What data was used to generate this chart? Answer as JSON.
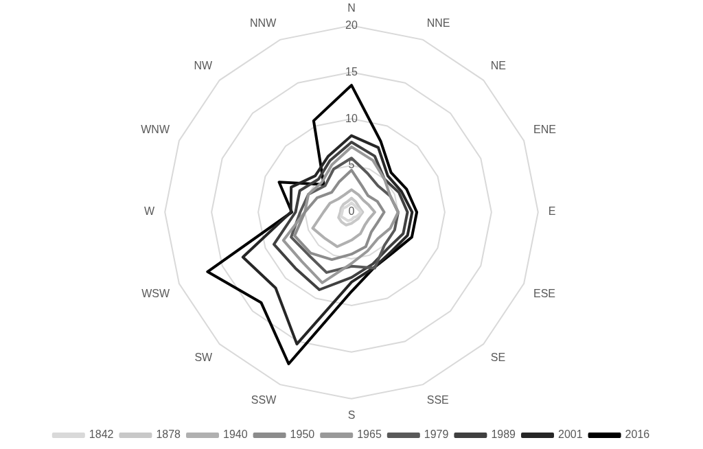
{
  "chart_data": {
    "type": "radar",
    "categories": [
      "N",
      "NNE",
      "NE",
      "ENE",
      "E",
      "ESE",
      "SE",
      "SSE",
      "S",
      "SSW",
      "SW",
      "WSW",
      "W",
      "WNW",
      "NW",
      "NNW"
    ],
    "ylim": [
      0,
      20
    ],
    "yticks": [
      0,
      5,
      10,
      15,
      20
    ],
    "grid": true,
    "legend": "bottom",
    "marker": "none",
    "series": [
      {
        "name": "1842",
        "color": "#d9d9d9",
        "values": [
          1,
          0.8,
          0.7,
          0.8,
          1,
          0.8,
          0.7,
          0.6,
          0.8,
          1,
          1,
          1.2,
          1,
          1,
          0.8,
          0.8
        ]
      },
      {
        "name": "1878",
        "color": "#c8c8c8",
        "values": [
          1.5,
          1.2,
          1,
          1,
          1.2,
          1,
          1,
          1,
          1.2,
          1.5,
          1.5,
          1.5,
          1.2,
          1.2,
          1.2,
          1.2
        ]
      },
      {
        "name": "1940",
        "color": "#b0b0b0",
        "values": [
          2.4,
          2,
          1.8,
          2,
          2.5,
          2,
          2,
          2.5,
          3,
          4,
          4,
          4.5,
          3,
          2.5,
          2,
          2
        ]
      },
      {
        "name": "1950",
        "color": "#8c8c8c",
        "values": [
          4.5,
          3,
          2.5,
          3,
          3.5,
          3,
          3,
          4,
          4.5,
          5.5,
          6.2,
          6.6,
          5,
          4,
          3,
          3.5
        ]
      },
      {
        "name": "1965",
        "color": "#999999",
        "values": [
          7,
          6,
          5,
          4.5,
          5,
          4.5,
          4,
          4.5,
          5.5,
          8.2,
          7.5,
          7.9,
          5,
          5,
          4.5,
          5.5
        ]
      },
      {
        "name": "1979",
        "color": "#595959",
        "values": [
          5.8,
          4.5,
          4,
          4.5,
          5,
          5,
          5,
          6.5,
          5.8,
          7,
          6.5,
          7,
          5.5,
          5,
          4,
          5
        ]
      },
      {
        "name": "1989",
        "color": "#404040",
        "values": [
          7.5,
          6.5,
          5,
          5.5,
          6,
          6,
          5.5,
          6,
          7,
          9,
          8.5,
          9,
          6,
          6,
          5,
          6
        ]
      },
      {
        "name": "2001",
        "color": "#262626",
        "values": [
          8.2,
          7.5,
          5.5,
          5.8,
          6.5,
          6.5,
          6,
          6.4,
          7.5,
          15.3,
          11.5,
          12.6,
          6.5,
          7,
          5.5,
          6.5
        ]
      },
      {
        "name": "2016",
        "color": "#000000",
        "values": [
          13.6,
          8.2,
          6,
          6.4,
          7,
          7,
          6.2,
          6.4,
          8.5,
          17.6,
          13.7,
          16.7,
          6.4,
          8.4,
          4.2,
          10.6
        ]
      }
    ]
  }
}
